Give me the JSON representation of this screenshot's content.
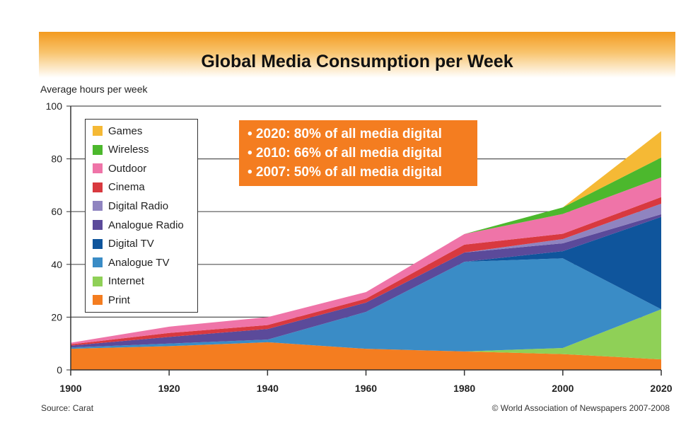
{
  "chart_data": {
    "type": "area",
    "stacked": true,
    "title": "Global Media Consumption per Week",
    "ylabel": "Average hours per week",
    "xlabel": "",
    "x": [
      1900,
      1920,
      1940,
      1960,
      1980,
      2000,
      2020
    ],
    "xticks": [
      "1900",
      "1920",
      "1940",
      "1960",
      "1980",
      "2000",
      "2020"
    ],
    "yticks": [
      "0",
      "20",
      "40",
      "60",
      "80",
      "100"
    ],
    "ylim": [
      0,
      100
    ],
    "grid": "horizontal",
    "legend_position": "top-left",
    "series": [
      {
        "name": "Print",
        "color": "#f47d20",
        "values": [
          8,
          9,
          10.5,
          8,
          7,
          6,
          4
        ]
      },
      {
        "name": "Internet",
        "color": "#8fd057",
        "values": [
          0,
          0,
          0,
          0,
          0,
          2.3,
          19
        ]
      },
      {
        "name": "Analogue TV",
        "color": "#3a8cc6",
        "values": [
          0.5,
          1,
          1,
          14,
          34,
          34,
          0
        ]
      },
      {
        "name": "Digital TV",
        "color": "#0f559c",
        "values": [
          0,
          0,
          0,
          0,
          0,
          2.7,
          35
        ]
      },
      {
        "name": "Analogue Radio",
        "color": "#5b4a9a",
        "values": [
          0.7,
          2.5,
          4,
          3.5,
          3.5,
          3,
          1
        ]
      },
      {
        "name": "Digital Radio",
        "color": "#8f84c0",
        "values": [
          0,
          0,
          0,
          0,
          0,
          1.6,
          4
        ]
      },
      {
        "name": "Cinema",
        "color": "#d8393f",
        "values": [
          0.5,
          1.5,
          1.5,
          1.5,
          3,
          2,
          2.5
        ]
      },
      {
        "name": "Outdoor",
        "color": "#ef74a8",
        "values": [
          0.6,
          2.4,
          3,
          2.5,
          4,
          7.5,
          7.5
        ]
      },
      {
        "name": "Wireless",
        "color": "#4cb82d",
        "values": [
          0,
          0,
          0,
          0,
          0,
          2.5,
          7.5
        ]
      },
      {
        "name": "Games",
        "color": "#f5b935",
        "values": [
          0,
          0,
          0,
          0,
          0,
          0,
          10
        ]
      }
    ],
    "annotations": [
      "• 2020: 80% of all media digital",
      "• 2010: 66% of all media digital",
      "• 2007: 50% of all media digital"
    ],
    "source": "Source: Carat",
    "copyright": "© World Association of Newspapers 2007-2008"
  }
}
